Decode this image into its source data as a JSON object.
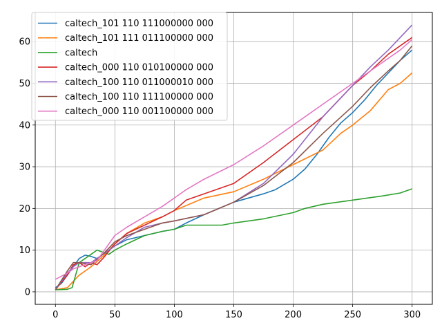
{
  "chart_data": {
    "type": "line",
    "title": "",
    "xlabel": "",
    "ylabel": "",
    "xlim": [
      -17,
      317
    ],
    "ylim": [
      -3,
      67
    ],
    "xticks": [
      0,
      50,
      100,
      150,
      200,
      250,
      300
    ],
    "yticks": [
      0,
      10,
      20,
      30,
      40,
      50,
      60
    ],
    "grid": true,
    "legend_position": "top-left",
    "series": [
      {
        "name": "caltech_101 110 111000000 000",
        "color": "#1f77b4",
        "points": [
          [
            0,
            1
          ],
          [
            5,
            2
          ],
          [
            10,
            4
          ],
          [
            15,
            6
          ],
          [
            20,
            8
          ],
          [
            25,
            8.8
          ],
          [
            30,
            8.5
          ],
          [
            35,
            8
          ],
          [
            40,
            9
          ],
          [
            50,
            11
          ],
          [
            60,
            12.5
          ],
          [
            75,
            13.5
          ],
          [
            90,
            14.5
          ],
          [
            100,
            15
          ],
          [
            110,
            16.5
          ],
          [
            125,
            18.5
          ],
          [
            150,
            21.5
          ],
          [
            175,
            23.5
          ],
          [
            185,
            24.5
          ],
          [
            200,
            27
          ],
          [
            210,
            29.5
          ],
          [
            220,
            33
          ],
          [
            230,
            37
          ],
          [
            240,
            40.5
          ],
          [
            250,
            43
          ],
          [
            260,
            46
          ],
          [
            270,
            49.5
          ],
          [
            280,
            52.5
          ],
          [
            290,
            55.5
          ],
          [
            300,
            58
          ]
        ]
      },
      {
        "name": "caltech_101 111 011100000 000",
        "color": "#ff7f0e",
        "points": [
          [
            0,
            0.5
          ],
          [
            10,
            1
          ],
          [
            15,
            2.5
          ],
          [
            20,
            4
          ],
          [
            30,
            6
          ],
          [
            40,
            8.5
          ],
          [
            50,
            11.5
          ],
          [
            60,
            14
          ],
          [
            75,
            16.5
          ],
          [
            90,
            18
          ],
          [
            100,
            19.5
          ],
          [
            125,
            22.5
          ],
          [
            150,
            24
          ],
          [
            175,
            27
          ],
          [
            200,
            30.5
          ],
          [
            225,
            34
          ],
          [
            240,
            38
          ],
          [
            250,
            40
          ],
          [
            265,
            43.5
          ],
          [
            280,
            48.5
          ],
          [
            290,
            50
          ],
          [
            300,
            52.5
          ]
        ]
      },
      {
        "name": "caltech",
        "color": "#2ca02c",
        "points": [
          [
            0,
            0.5
          ],
          [
            10,
            0.6
          ],
          [
            14,
            1
          ],
          [
            17,
            4
          ],
          [
            20,
            7
          ],
          [
            25,
            8
          ],
          [
            30,
            9
          ],
          [
            35,
            10
          ],
          [
            40,
            9.5
          ],
          [
            45,
            9
          ],
          [
            50,
            10
          ],
          [
            60,
            11.5
          ],
          [
            75,
            13.5
          ],
          [
            90,
            14.5
          ],
          [
            100,
            15
          ],
          [
            110,
            16
          ],
          [
            125,
            16
          ],
          [
            140,
            16
          ],
          [
            150,
            16.5
          ],
          [
            175,
            17.5
          ],
          [
            200,
            19
          ],
          [
            210,
            20
          ],
          [
            225,
            21
          ],
          [
            250,
            22
          ],
          [
            275,
            23
          ],
          [
            290,
            23.7
          ],
          [
            300,
            24.7
          ]
        ]
      },
      {
        "name": "caltech_000 110 010100000 000",
        "color": "#d62728",
        "points": [
          [
            0,
            0.5
          ],
          [
            10,
            4
          ],
          [
            15,
            6.5
          ],
          [
            20,
            7
          ],
          [
            25,
            6
          ],
          [
            30,
            7
          ],
          [
            35,
            6.5
          ],
          [
            40,
            8
          ],
          [
            50,
            11.5
          ],
          [
            60,
            14
          ],
          [
            75,
            16
          ],
          [
            90,
            18
          ],
          [
            100,
            19.5
          ],
          [
            110,
            22
          ],
          [
            125,
            23.5
          ],
          [
            150,
            26
          ],
          [
            175,
            31
          ],
          [
            200,
            36.5
          ],
          [
            225,
            42
          ],
          [
            250,
            49.5
          ],
          [
            265,
            53
          ],
          [
            280,
            57
          ],
          [
            290,
            59
          ],
          [
            300,
            61
          ]
        ]
      },
      {
        "name": "caltech_100 110 011000010 000",
        "color": "#9467bd",
        "points": [
          [
            0,
            0.5
          ],
          [
            10,
            4.5
          ],
          [
            15,
            6
          ],
          [
            20,
            7
          ],
          [
            30,
            7
          ],
          [
            40,
            9
          ],
          [
            50,
            11
          ],
          [
            60,
            13
          ],
          [
            75,
            15.5
          ],
          [
            90,
            16.5
          ],
          [
            100,
            17
          ],
          [
            125,
            18.5
          ],
          [
            150,
            21.5
          ],
          [
            175,
            26
          ],
          [
            200,
            33
          ],
          [
            225,
            42
          ],
          [
            250,
            49.5
          ],
          [
            265,
            54
          ],
          [
            280,
            58
          ],
          [
            290,
            61
          ],
          [
            300,
            64
          ]
        ]
      },
      {
        "name": "caltech_100 110 111100000 000",
        "color": "#8c564b",
        "points": [
          [
            0,
            0.5
          ],
          [
            10,
            5
          ],
          [
            15,
            7
          ],
          [
            20,
            7
          ],
          [
            30,
            6.5
          ],
          [
            40,
            9
          ],
          [
            50,
            12
          ],
          [
            60,
            13.5
          ],
          [
            75,
            15
          ],
          [
            90,
            16.5
          ],
          [
            100,
            17
          ],
          [
            125,
            18.5
          ],
          [
            150,
            21.5
          ],
          [
            175,
            25.5
          ],
          [
            200,
            31
          ],
          [
            225,
            38
          ],
          [
            250,
            44.5
          ],
          [
            265,
            49
          ],
          [
            280,
            53
          ],
          [
            290,
            55.5
          ],
          [
            300,
            59
          ]
        ]
      },
      {
        "name": "caltech_000 110 001100000 000",
        "color": "#e377c2",
        "points": [
          [
            0,
            3
          ],
          [
            10,
            4.5
          ],
          [
            15,
            5.5
          ],
          [
            25,
            6.5
          ],
          [
            35,
            7.5
          ],
          [
            40,
            9.5
          ],
          [
            50,
            13.5
          ],
          [
            60,
            15.5
          ],
          [
            75,
            18
          ],
          [
            90,
            20.5
          ],
          [
            100,
            22.5
          ],
          [
            110,
            24.5
          ],
          [
            125,
            27
          ],
          [
            150,
            30.5
          ],
          [
            175,
            35
          ],
          [
            200,
            40
          ],
          [
            225,
            45
          ],
          [
            250,
            50
          ],
          [
            265,
            53
          ],
          [
            280,
            56
          ],
          [
            290,
            58
          ],
          [
            300,
            60.5
          ]
        ]
      }
    ]
  }
}
